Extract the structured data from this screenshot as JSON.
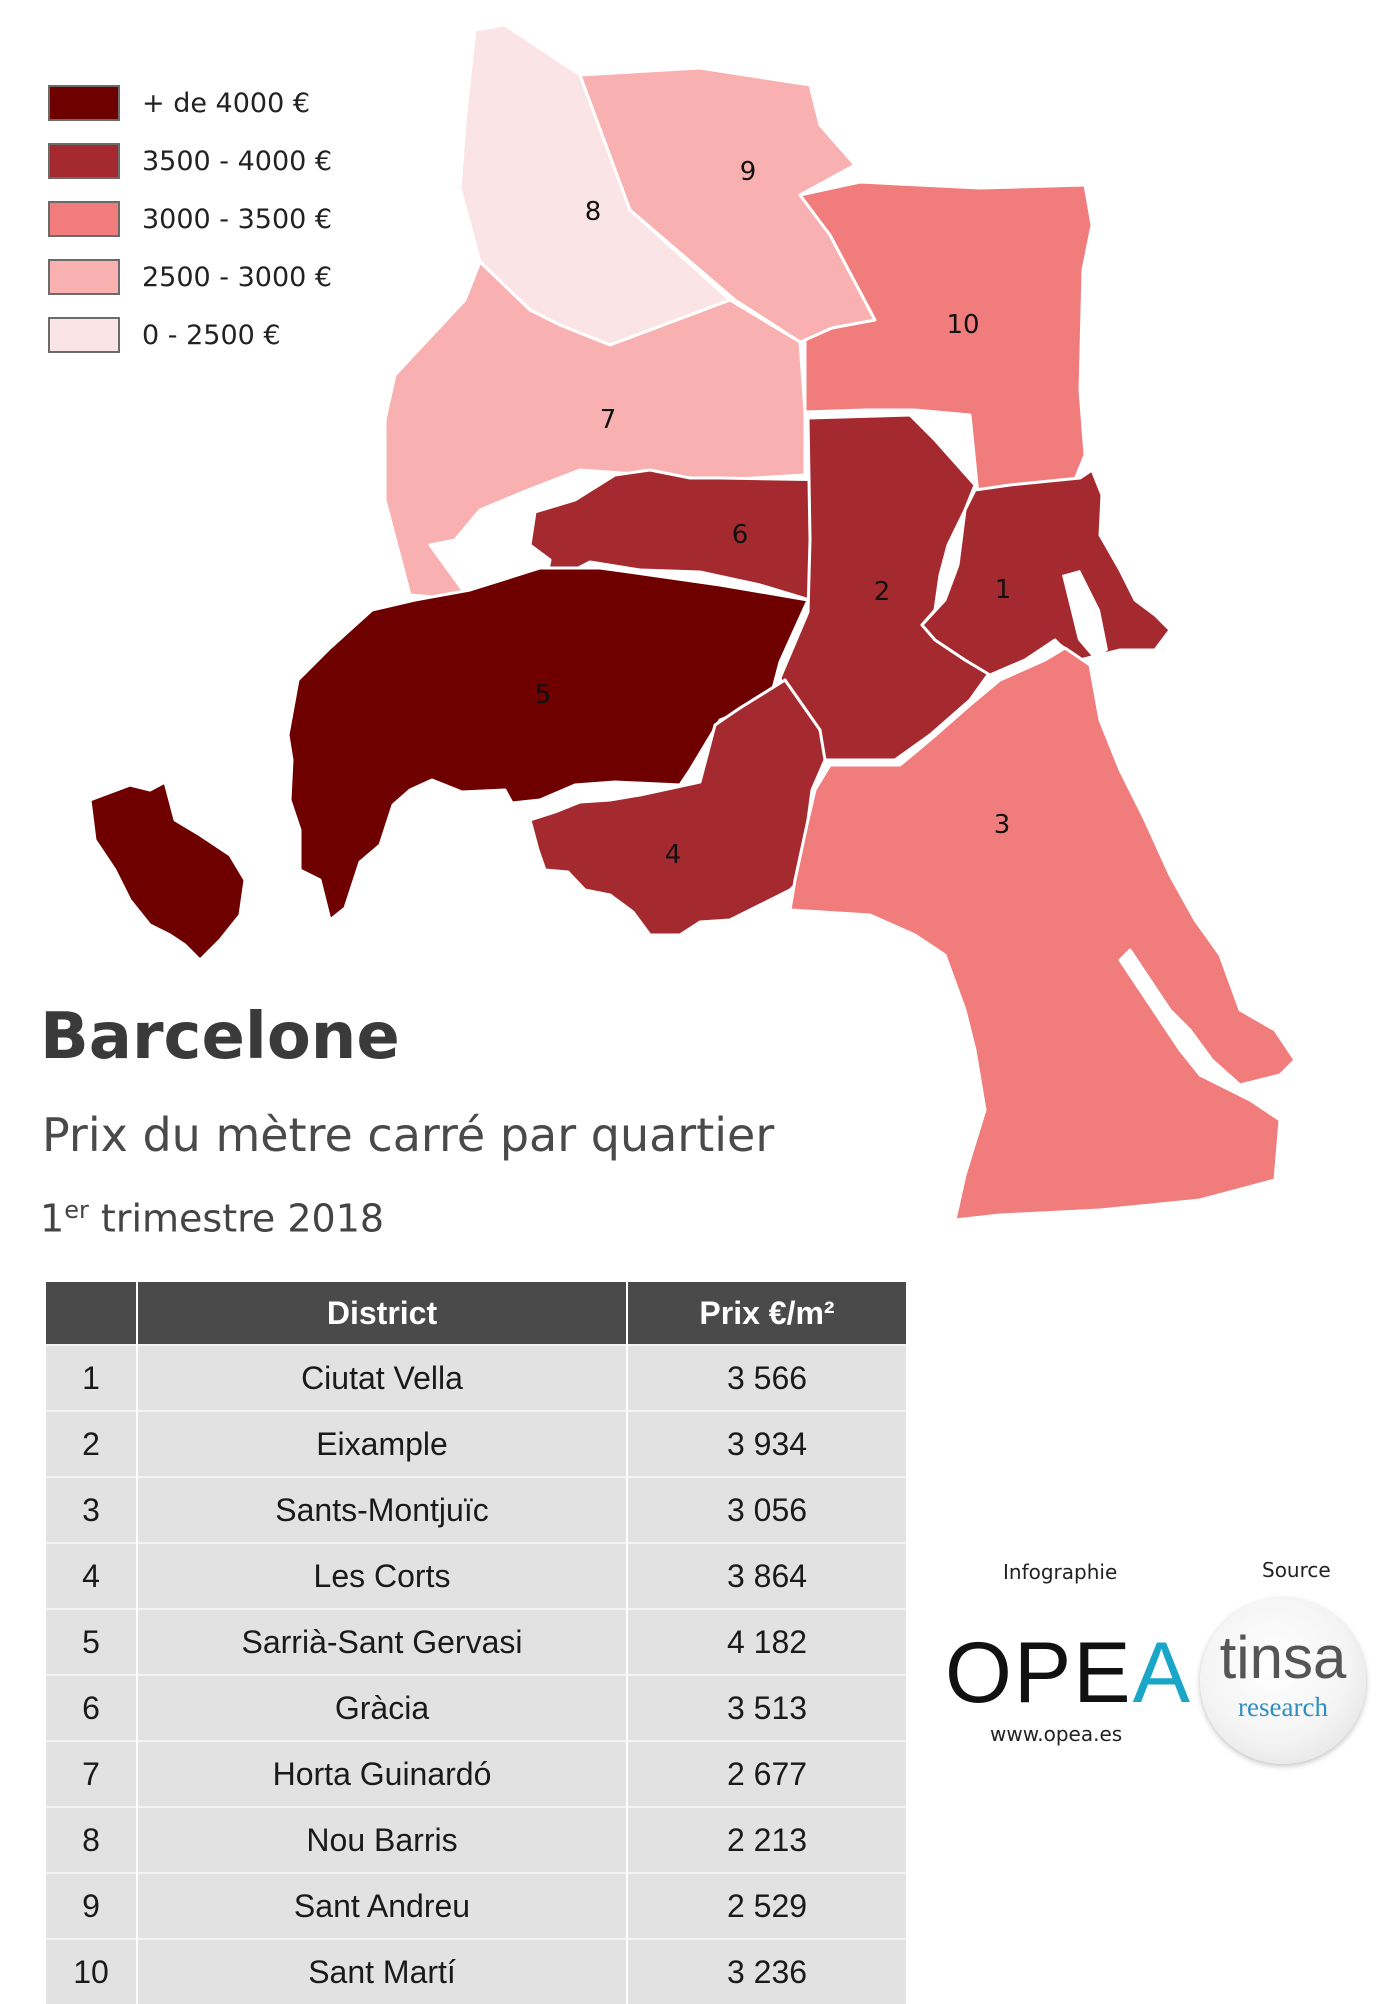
{
  "legend": [
    {
      "label": "+ de 4000 €",
      "color": "#6e0000"
    },
    {
      "label": "3500 - 4000 €",
      "color": "#a52a2f"
    },
    {
      "label": "3000 - 3500 €",
      "color": "#f07c7c"
    },
    {
      "label": "2500 - 3000 €",
      "color": "#f9b0b0"
    },
    {
      "label": "0 - 2500 €",
      "color": "#fbe4e6"
    }
  ],
  "map_labels": [
    "1",
    "2",
    "3",
    "4",
    "5",
    "6",
    "7",
    "8",
    "9",
    "10"
  ],
  "title": "Barcelone",
  "subtitle": "Prix du mètre carré par quartier",
  "period": {
    "ordinal": "1",
    "suffix": "er",
    "text": "trimestre 2018"
  },
  "table": {
    "headers": [
      "",
      "District",
      "Prix €/m²"
    ],
    "rows": [
      {
        "num": "1",
        "district": "Ciutat Vella",
        "price": "3 566"
      },
      {
        "num": "2",
        "district": "Eixample",
        "price": "3 934"
      },
      {
        "num": "3",
        "district": "Sants-Montjuïc",
        "price": "3 056"
      },
      {
        "num": "4",
        "district": "Les Corts",
        "price": "3 864"
      },
      {
        "num": "5",
        "district": "Sarrià-Sant Gervasi",
        "price": "4 182"
      },
      {
        "num": "6",
        "district": "Gràcia",
        "price": "3 513"
      },
      {
        "num": "7",
        "district": "Horta Guinardó",
        "price": "2 677"
      },
      {
        "num": "8",
        "district": "Nou Barris",
        "price": "2 213"
      },
      {
        "num": "9",
        "district": "Sant Andreu",
        "price": "2 529"
      },
      {
        "num": "10",
        "district": "Sant Martí",
        "price": "3 236"
      }
    ]
  },
  "credits": {
    "infographie_label": "Infographie",
    "source_label": "Source",
    "opea_main": "OPE",
    "opea_accent": "A",
    "opea_url": "www.opea.es",
    "tinsa_main": "tinsa",
    "tinsa_sub": "research"
  }
}
